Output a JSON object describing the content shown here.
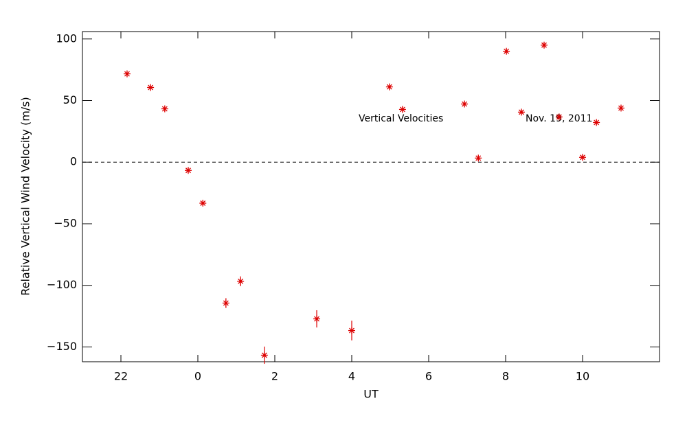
{
  "chart_data": {
    "type": "scatter",
    "x_label": "UT",
    "y_label": "Relative Vertical Wind Velocity (m/s)",
    "annotations": [
      "Vertical Velocities",
      "Nov. 19, 2011"
    ],
    "color": "#dd0000",
    "reference_line": 0,
    "xlim": [
      -3,
      12
    ],
    "ylim": [
      -162,
      106
    ],
    "xticks": [
      {
        "value": -2,
        "label": "22"
      },
      0,
      2,
      4,
      6,
      8,
      10
    ],
    "yticks": [
      {
        "value": -150,
        "label": "−150"
      },
      {
        "value": -100,
        "label": "−100"
      },
      {
        "value": -50,
        "label": "−50"
      },
      0,
      50,
      100
    ],
    "x": [
      -1.84,
      -1.23,
      -0.86,
      -0.25,
      0.13,
      0.73,
      1.11,
      1.73,
      3.09,
      4.0,
      4.98,
      5.32,
      6.93,
      7.29,
      8.02,
      8.41,
      9.0,
      9.39,
      10.0,
      10.36,
      11.0
    ],
    "values": [
      71.7,
      60.6,
      43.3,
      -6.7,
      -33.3,
      -114.4,
      -96.7,
      -156.7,
      -127.2,
      -136.7,
      61.1,
      42.8,
      47.2,
      3.3,
      90,
      40.6,
      95,
      36.7,
      3.9,
      32.2,
      43.9
    ],
    "errors": [
      2,
      2,
      2,
      2,
      2,
      4,
      4,
      7,
      7,
      8,
      2,
      2,
      2,
      2,
      2,
      2,
      2,
      2,
      2,
      2,
      2
    ]
  }
}
